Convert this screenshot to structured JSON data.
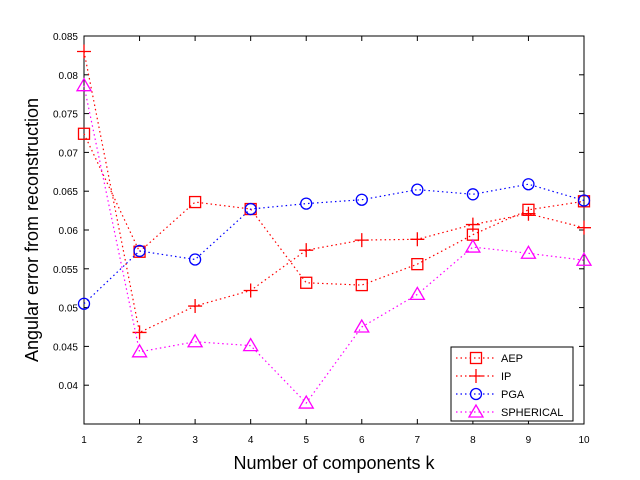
{
  "chart_data": {
    "type": "line",
    "xlabel": "Number of components k",
    "ylabel": "Angular error from reconstruction",
    "xlim": [
      1,
      10
    ],
    "ylim": [
      0.035,
      0.085
    ],
    "x": [
      1,
      2,
      3,
      4,
      5,
      6,
      7,
      8,
      9,
      10
    ],
    "x_tick_labels": [
      "1",
      "2",
      "3",
      "4",
      "5",
      "6",
      "7",
      "8",
      "9",
      "10"
    ],
    "y_ticks": [
      0.04,
      0.045,
      0.05,
      0.055,
      0.06,
      0.065,
      0.07,
      0.075,
      0.08,
      0.085
    ],
    "y_tick_labels": [
      "0.04",
      "0.045",
      "0.05",
      "0.055",
      "0.06",
      "0.065",
      "0.07",
      "0.075",
      "0.08",
      "0.085"
    ],
    "grid": false,
    "legend_position": "bottom-right",
    "series": [
      {
        "name": "AEP",
        "color": "#ff0000",
        "marker": "square",
        "line_style": "dotted",
        "values": [
          0.0724,
          0.0572,
          0.0636,
          0.0627,
          0.0532,
          0.0529,
          0.0556,
          0.0594,
          0.0626,
          0.0637
        ]
      },
      {
        "name": "IP",
        "color": "#ff0000",
        "marker": "plus",
        "line_style": "dotted",
        "values": [
          0.083,
          0.0468,
          0.0502,
          0.0522,
          0.0574,
          0.0587,
          0.0588,
          0.0607,
          0.0621,
          0.0603
        ]
      },
      {
        "name": "PGA",
        "color": "#0000ff",
        "marker": "circle",
        "line_style": "dotted",
        "values": [
          0.0505,
          0.0573,
          0.0562,
          0.0627,
          0.0634,
          0.0639,
          0.0652,
          0.0646,
          0.0659,
          0.0638
        ]
      },
      {
        "name": "SPHERICAL",
        "color": "#ff00ff",
        "marker": "triangle",
        "line_style": "dotted",
        "values": [
          0.0786,
          0.0443,
          0.0456,
          0.0451,
          0.0377,
          0.0475,
          0.0517,
          0.0578,
          0.057,
          0.0561
        ]
      }
    ]
  }
}
